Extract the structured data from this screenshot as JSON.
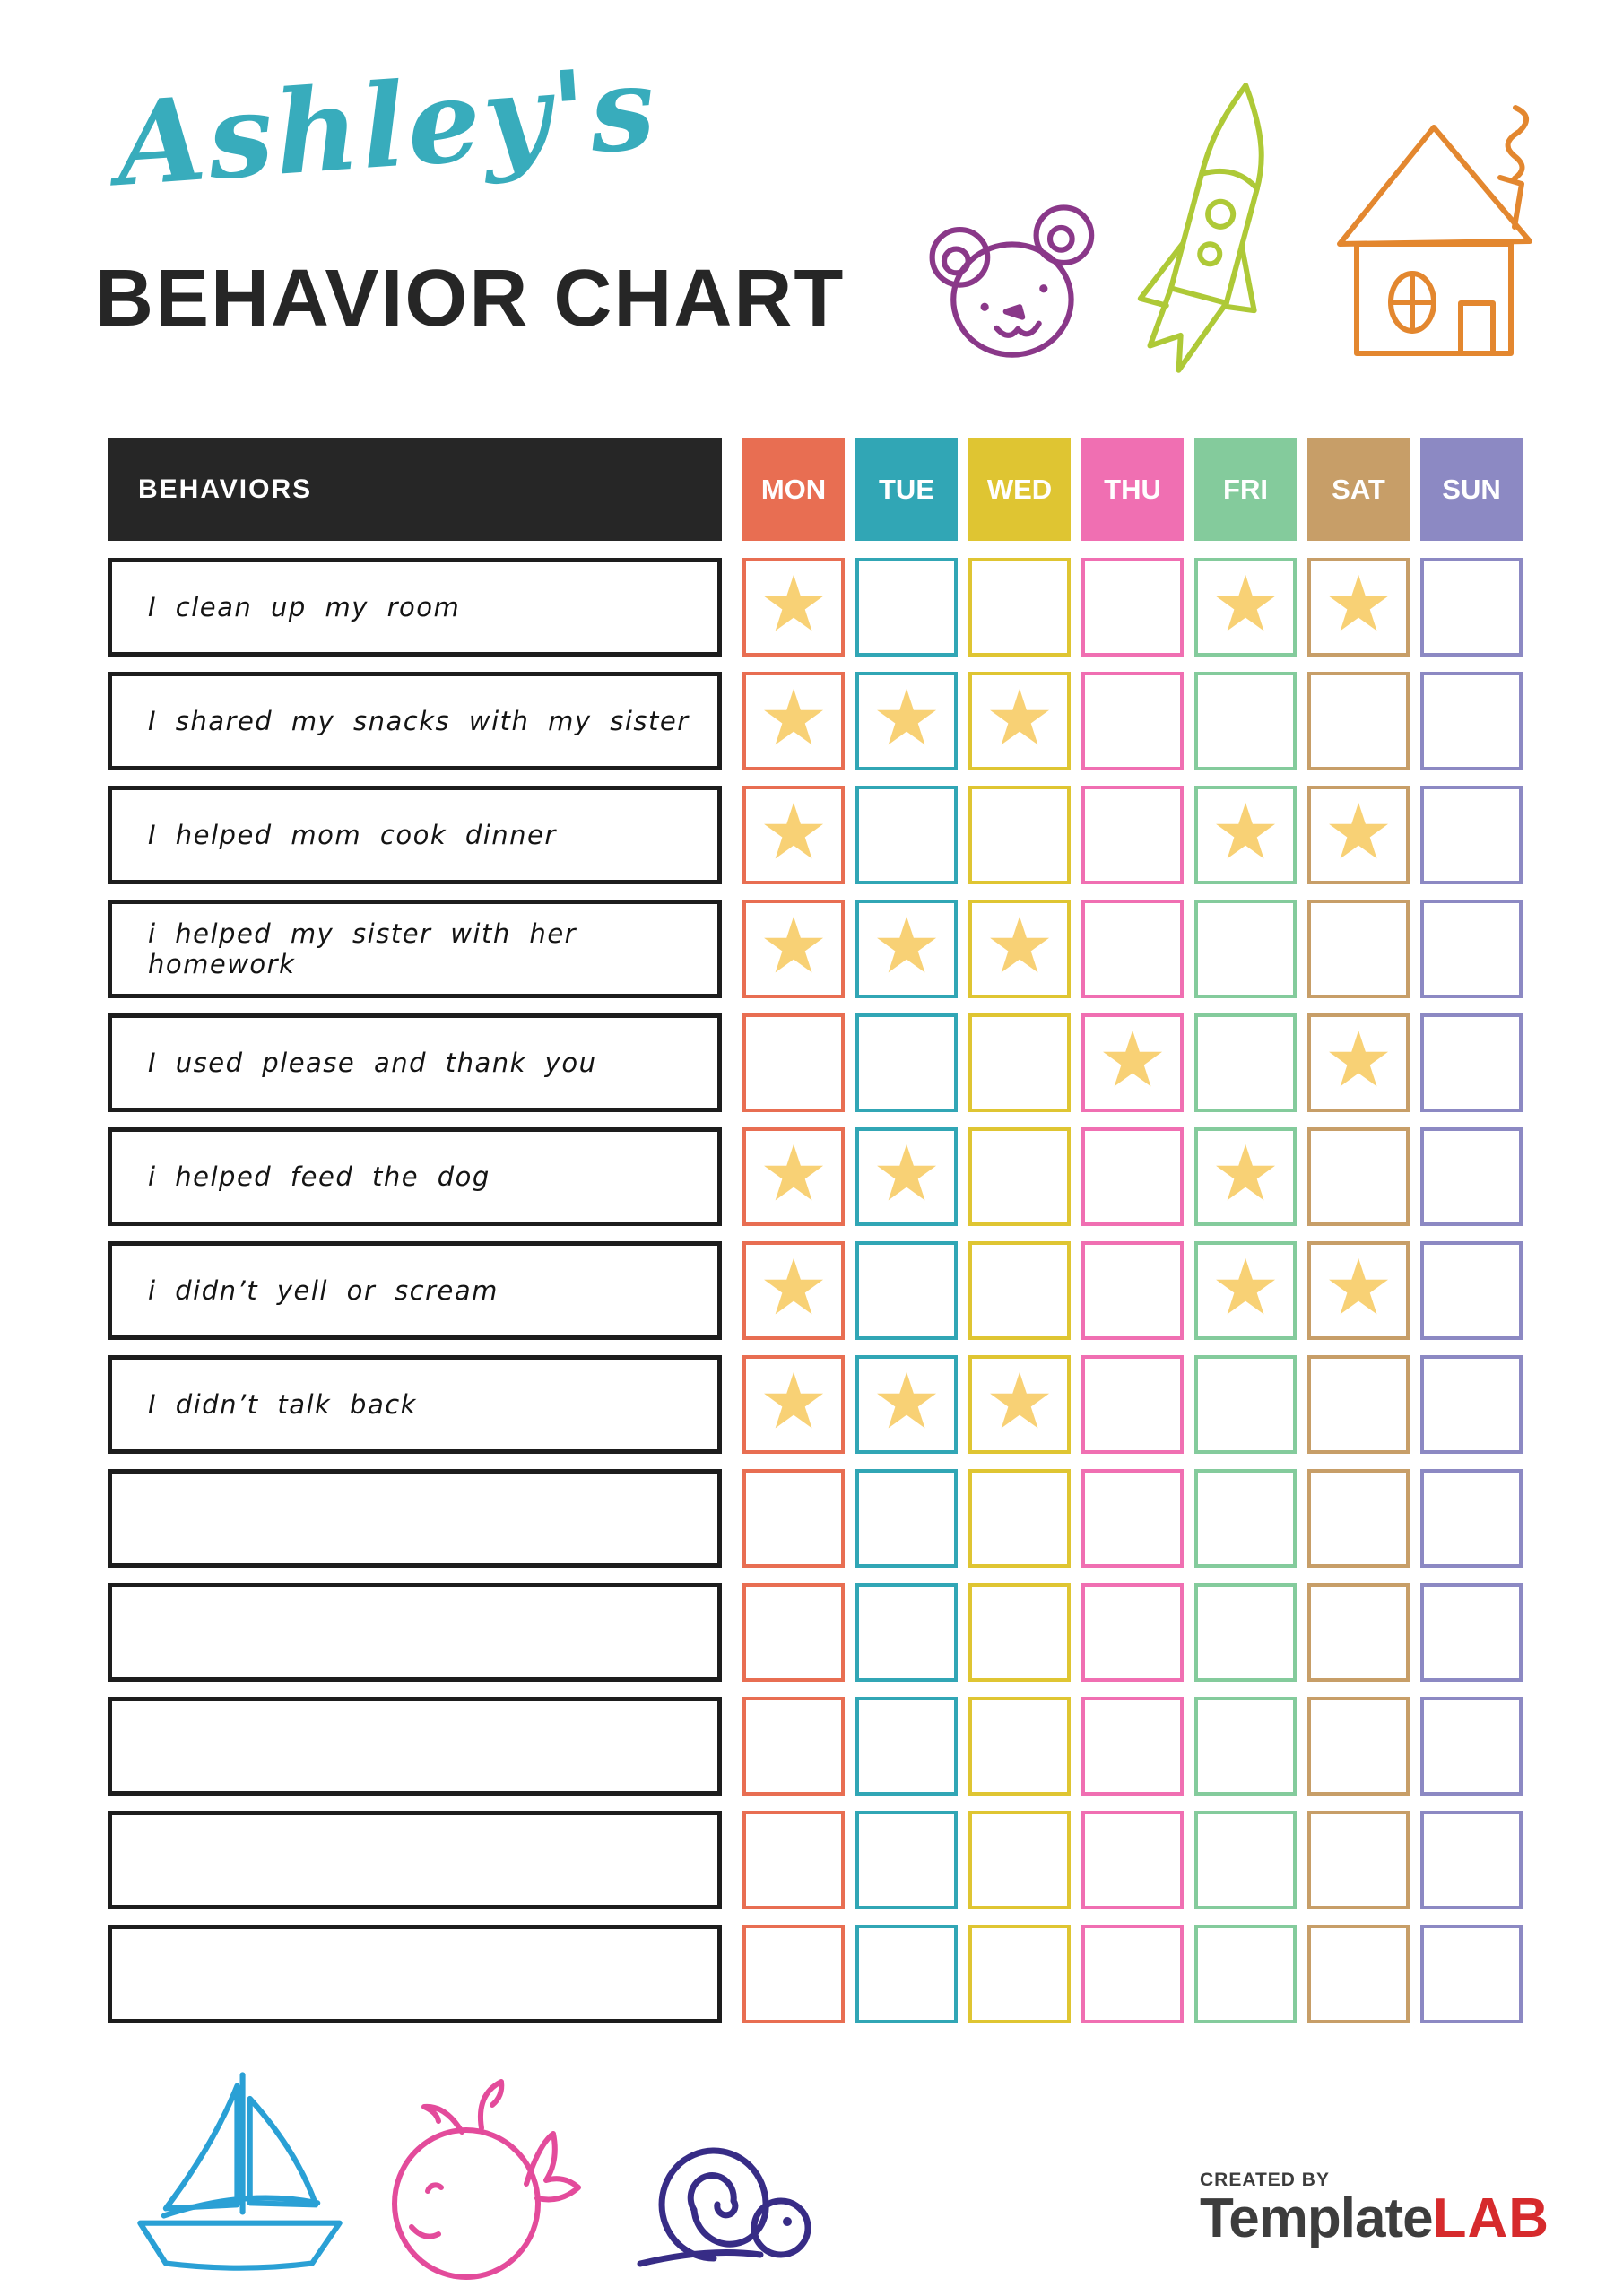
{
  "header": {
    "name_script": "Ashley's",
    "name_color": "#38ACBC",
    "title": "BEHAVIOR CHART"
  },
  "doodle_colors": {
    "bear": "#8A3889",
    "rocket": "#AEC937",
    "house": "#E3872F",
    "sailboat": "#2AA0D5",
    "whale": "#E34B9B",
    "snail": "#372C86"
  },
  "table": {
    "behaviors_header": "BEHAVIORS",
    "header_bg": "#262626",
    "star_color": "#F8D175",
    "star_icon": "★",
    "days": [
      {
        "label": "MON",
        "color": "#E86E52"
      },
      {
        "label": "TUE",
        "color": "#31A6B5"
      },
      {
        "label": "WED",
        "color": "#DFC532"
      },
      {
        "label": "THU",
        "color": "#F06FB2"
      },
      {
        "label": "FRI",
        "color": "#84CB9C"
      },
      {
        "label": "SAT",
        "color": "#C79E68"
      },
      {
        "label": "SUN",
        "color": "#8C89C3"
      }
    ],
    "rows": [
      {
        "text": "I clean up my room",
        "stars": [
          "MON",
          "FRI",
          "SAT"
        ]
      },
      {
        "text": "I shared my snacks with my sister",
        "stars": [
          "MON",
          "TUE",
          "WED"
        ]
      },
      {
        "text": "I helped mom cook dinner",
        "stars": [
          "MON",
          "FRI",
          "SAT"
        ]
      },
      {
        "text": "i helped my sister with her homework",
        "stars": [
          "MON",
          "TUE",
          "WED"
        ]
      },
      {
        "text": "I used please and thank you",
        "stars": [
          "THU",
          "SAT"
        ]
      },
      {
        "text": "i helped feed the dog",
        "stars": [
          "MON",
          "TUE",
          "FRI"
        ]
      },
      {
        "text": "i didn’t yell or scream",
        "stars": [
          "MON",
          "FRI",
          "SAT"
        ]
      },
      {
        "text": "I didn’t talk back",
        "stars": [
          "MON",
          "TUE",
          "WED"
        ]
      },
      {
        "text": "",
        "stars": []
      },
      {
        "text": "",
        "stars": []
      },
      {
        "text": "",
        "stars": []
      },
      {
        "text": "",
        "stars": []
      },
      {
        "text": "",
        "stars": []
      }
    ]
  },
  "footer": {
    "created_by": "CREATED BY",
    "brand_name": "Template",
    "brand_suffix": "LAB",
    "brand_gray": "#3D3D3D",
    "brand_red": "#D62A2C"
  }
}
